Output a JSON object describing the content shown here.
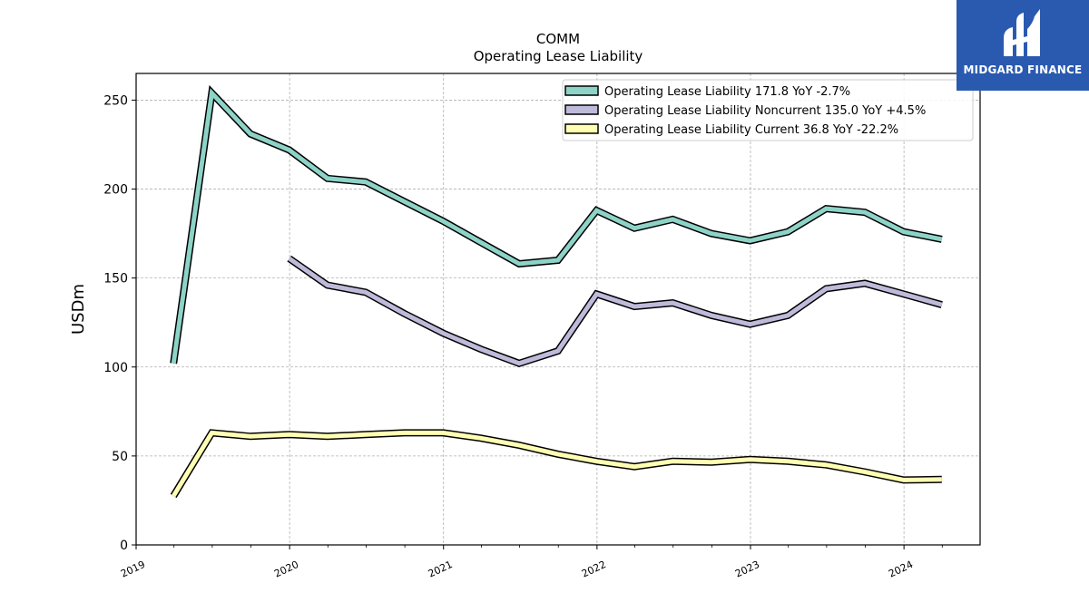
{
  "chart_data": {
    "type": "line",
    "title": "COMM",
    "subtitle": "Operating Lease Liability",
    "ylabel": "USDm",
    "xlabel": "",
    "ylim": [
      0,
      265
    ],
    "xlim": [
      "2019-01-01",
      "2024-06-30"
    ],
    "yticks": [
      0,
      50,
      100,
      150,
      200,
      250
    ],
    "xticks": [
      {
        "label": "2019",
        "date": "2019-01-01"
      },
      {
        "label": "2020",
        "date": "2020-01-01"
      },
      {
        "label": "2021",
        "date": "2021-01-01"
      },
      {
        "label": "2022",
        "date": "2022-01-01"
      },
      {
        "label": "2023",
        "date": "2023-01-01"
      },
      {
        "label": "2024",
        "date": "2024-01-01"
      }
    ],
    "grid": true,
    "legend_position": "top-right",
    "series": [
      {
        "name": "Operating Lease Liability  171.8 YoY -2.7%",
        "color": "#8dd3c7",
        "x": [
          "2019-03-31",
          "2019-06-30",
          "2019-09-30",
          "2019-12-31",
          "2020-03-31",
          "2020-06-30",
          "2020-09-30",
          "2020-12-31",
          "2021-03-31",
          "2021-06-30",
          "2021-09-30",
          "2021-12-31",
          "2022-03-31",
          "2022-06-30",
          "2022-09-30",
          "2022-12-31",
          "2023-03-31",
          "2023-06-30",
          "2023-09-30",
          "2023-12-31",
          "2024-03-31"
        ],
        "values": [
          102,
          254,
          231,
          222,
          206,
          204,
          193,
          182,
          170,
          158,
          160,
          188,
          178,
          183,
          175,
          171,
          176,
          189,
          187,
          176,
          171.8
        ]
      },
      {
        "name": "Operating Lease Liability Noncurrent  135.0 YoY +4.5%",
        "color": "#bebada",
        "x": [
          "2019-12-31",
          "2020-03-31",
          "2020-06-30",
          "2020-09-30",
          "2020-12-31",
          "2021-03-31",
          "2021-06-30",
          "2021-09-30",
          "2021-12-31",
          "2022-03-31",
          "2022-06-30",
          "2022-09-30",
          "2022-12-31",
          "2023-03-31",
          "2023-06-30",
          "2023-09-30",
          "2023-12-31",
          "2024-03-31"
        ],
        "values": [
          161,
          146,
          142,
          130,
          119,
          110,
          102,
          109,
          141,
          134,
          136,
          129,
          124,
          129,
          144,
          147,
          141,
          135.0
        ]
      },
      {
        "name": "Operating Lease Liability Current  36.8 YoY -22.2%",
        "color": "#ffffb3",
        "x": [
          "2019-03-31",
          "2019-06-30",
          "2019-09-30",
          "2019-12-31",
          "2020-03-31",
          "2020-06-30",
          "2020-09-30",
          "2020-12-31",
          "2021-03-31",
          "2021-06-30",
          "2021-09-30",
          "2021-12-31",
          "2022-03-31",
          "2022-06-30",
          "2022-09-30",
          "2022-12-31",
          "2023-03-31",
          "2023-06-30",
          "2023-09-30",
          "2023-12-31",
          "2024-03-31"
        ],
        "values": [
          27.5,
          63,
          61,
          62,
          61,
          62,
          63,
          63,
          60,
          56,
          51,
          47,
          44,
          47,
          46.5,
          48,
          47,
          45,
          41,
          36.5,
          36.8
        ]
      }
    ]
  },
  "logo": {
    "text": "MIDGARD FINANCE",
    "background": "#2a5ab0"
  }
}
